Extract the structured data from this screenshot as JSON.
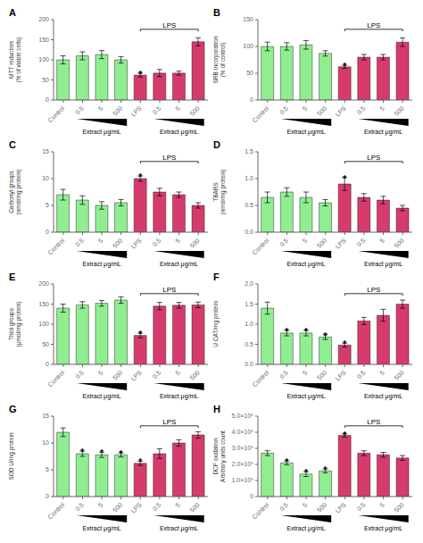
{
  "chart_data": [
    {
      "type": "bar",
      "title": "A",
      "ylabel": "MTT reduction\n(% of viable cells)",
      "categories": [
        "Control",
        "0.5",
        "5",
        "500",
        "LPS",
        "0.5",
        "5",
        "500"
      ],
      "values": [
        100,
        110,
        113,
        100,
        62,
        67,
        67,
        145
      ],
      "errors": [
        10,
        10,
        10,
        8,
        5,
        9,
        5,
        10
      ],
      "colors": [
        "#90ee90",
        "#90ee90",
        "#90ee90",
        "#90ee90",
        "#d63c6b",
        "#d63c6b",
        "#d63c6b",
        "#d63c6b"
      ],
      "ylim": [
        0,
        200
      ],
      "yticks": [
        0,
        50,
        100,
        150,
        200
      ],
      "annotations": [
        {
          "text": "*",
          "index": 4
        },
        {
          "text": "LPS",
          "from": 4,
          "to": 7,
          "shape": "bracket"
        },
        {
          "text": "Extract μg/mL",
          "from": 1,
          "to": 3,
          "shape": "triangle"
        },
        {
          "text": "Extract μg/mL",
          "from": 5,
          "to": 7,
          "shape": "triangle"
        }
      ]
    },
    {
      "type": "bar",
      "title": "B",
      "ylabel": "SRB Incorporation\n(% of control)",
      "categories": [
        "Control",
        "0.5",
        "5",
        "500",
        "LPS",
        "0.5",
        "5",
        "500"
      ],
      "values": [
        100,
        100,
        103,
        87,
        62,
        80,
        80,
        108
      ],
      "errors": [
        8,
        7,
        8,
        5,
        3,
        5,
        5,
        8
      ],
      "colors": [
        "#90ee90",
        "#90ee90",
        "#90ee90",
        "#90ee90",
        "#d63c6b",
        "#d63c6b",
        "#d63c6b",
        "#d63c6b"
      ],
      "ylim": [
        0,
        150
      ],
      "yticks": [
        0,
        50,
        100,
        150
      ],
      "annotations": [
        {
          "text": "*",
          "index": 4
        },
        {
          "text": "LPS",
          "from": 4,
          "to": 7,
          "shape": "bracket"
        },
        {
          "text": "Extract μg/mL",
          "from": 1,
          "to": 3,
          "shape": "triangle"
        },
        {
          "text": "Extract μg/mL",
          "from": 5,
          "to": 7,
          "shape": "triangle"
        }
      ]
    },
    {
      "type": "bar",
      "title": "C",
      "ylabel": "Carbonyl groups\n(nmol/mg protein)",
      "categories": [
        "Control",
        "0.5",
        "5",
        "500",
        "LPS",
        "0.5",
        "5",
        "500"
      ],
      "values": [
        7,
        6,
        5,
        5.5,
        10,
        7.5,
        7,
        5
      ],
      "errors": [
        1.0,
        0.8,
        0.7,
        0.6,
        0.5,
        0.7,
        0.5,
        0.5
      ],
      "colors": [
        "#90ee90",
        "#90ee90",
        "#90ee90",
        "#90ee90",
        "#d63c6b",
        "#d63c6b",
        "#d63c6b",
        "#d63c6b"
      ],
      "ylim": [
        0,
        15
      ],
      "yticks": [
        0,
        5,
        10,
        15
      ],
      "annotations": [
        {
          "text": "*",
          "index": 4
        },
        {
          "text": "LPS",
          "from": 4,
          "to": 7,
          "shape": "bracket"
        },
        {
          "text": "Extract μg/mL",
          "from": 1,
          "to": 3,
          "shape": "triangle"
        },
        {
          "text": "Extract μg/mL",
          "from": 5,
          "to": 7,
          "shape": "triangle"
        }
      ]
    },
    {
      "type": "bar",
      "title": "D",
      "ylabel": "TBARS\n(nmol/mg protein)",
      "categories": [
        "Control",
        "0.5",
        "5",
        "500",
        "LPS",
        "0.5",
        "5",
        "500"
      ],
      "values": [
        0.65,
        0.75,
        0.65,
        0.55,
        0.9,
        0.65,
        0.6,
        0.45
      ],
      "errors": [
        0.1,
        0.08,
        0.1,
        0.06,
        0.12,
        0.07,
        0.07,
        0.05
      ],
      "colors": [
        "#90ee90",
        "#90ee90",
        "#90ee90",
        "#90ee90",
        "#d63c6b",
        "#d63c6b",
        "#d63c6b",
        "#d63c6b"
      ],
      "ylim": [
        0.0,
        1.5
      ],
      "yticks": [
        {
          "value": 0.0,
          "label": "0.0"
        },
        0.5,
        {
          "value": 1.0,
          "label": "1.0"
        },
        1.5
      ],
      "annotations": [
        {
          "text": "*",
          "index": 4
        },
        {
          "text": "LPS",
          "from": 4,
          "to": 7,
          "shape": "bracket"
        },
        {
          "text": "Extract μg/mL",
          "from": 1,
          "to": 3,
          "shape": "triangle"
        },
        {
          "text": "Extract μg/mL",
          "from": 5,
          "to": 7,
          "shape": "triangle"
        }
      ]
    },
    {
      "type": "bar",
      "title": "E",
      "ylabel": "Thiol groups\n(μmol/mg protein)",
      "categories": [
        "Control",
        "0.5",
        "5",
        "500",
        "LPS",
        "0.5",
        "5",
        "500"
      ],
      "values": [
        140,
        148,
        152,
        160,
        72,
        145,
        147,
        148
      ],
      "errors": [
        10,
        8,
        7,
        8,
        6,
        9,
        7,
        7
      ],
      "colors": [
        "#90ee90",
        "#90ee90",
        "#90ee90",
        "#90ee90",
        "#d63c6b",
        "#d63c6b",
        "#d63c6b",
        "#d63c6b"
      ],
      "ylim": [
        0,
        200
      ],
      "yticks": [
        0,
        50,
        100,
        150,
        200
      ],
      "annotations": [
        {
          "text": "*",
          "index": 4
        },
        {
          "text": "LPS",
          "from": 4,
          "to": 7,
          "shape": "bracket"
        },
        {
          "text": "Extract μg/mL",
          "from": 1,
          "to": 3,
          "shape": "triangle"
        },
        {
          "text": "Extract μg/mL",
          "from": 5,
          "to": 7,
          "shape": "triangle"
        }
      ]
    },
    {
      "type": "bar",
      "title": "F",
      "ylabel": "U CAT/mg protein",
      "categories": [
        "Control",
        "0.5",
        "5",
        "500",
        "LPS",
        "0.5",
        "5",
        "500"
      ],
      "values": [
        1.4,
        0.78,
        0.78,
        0.68,
        0.48,
        1.08,
        1.22,
        1.5
      ],
      "errors": [
        0.15,
        0.07,
        0.07,
        0.06,
        0.05,
        0.09,
        0.15,
        0.1
      ],
      "colors": [
        "#90ee90",
        "#90ee90",
        "#90ee90",
        "#90ee90",
        "#d63c6b",
        "#d63c6b",
        "#d63c6b",
        "#d63c6b"
      ],
      "ylim": [
        0.0,
        2.0
      ],
      "yticks": [
        {
          "value": 0.0,
          "label": "0.0"
        },
        0.5,
        {
          "value": 1.0,
          "label": "1.0"
        },
        1.5,
        {
          "value": 2.0,
          "label": "2.0"
        }
      ],
      "annotations": [
        {
          "text": "*",
          "index": 1
        },
        {
          "text": "*",
          "index": 2
        },
        {
          "text": "*",
          "index": 3
        },
        {
          "text": "*",
          "index": 4
        },
        {
          "text": "LPS",
          "from": 4,
          "to": 7,
          "shape": "bracket"
        },
        {
          "text": "Extract μg/mL",
          "from": 1,
          "to": 3,
          "shape": "triangle"
        },
        {
          "text": "Extract μg/mL",
          "from": 5,
          "to": 7,
          "shape": "triangle"
        }
      ]
    },
    {
      "type": "bar",
      "title": "G",
      "ylabel": "SOD U/mg protein",
      "categories": [
        "Control",
        "0.5",
        "5",
        "500",
        "LPS",
        "0.5",
        "5",
        "500"
      ],
      "values": [
        12,
        8,
        7.8,
        7.8,
        6.2,
        8,
        10,
        11.5
      ],
      "errors": [
        0.8,
        0.5,
        0.5,
        0.4,
        0.4,
        0.9,
        0.6,
        0.6
      ],
      "colors": [
        "#90ee90",
        "#90ee90",
        "#90ee90",
        "#90ee90",
        "#d63c6b",
        "#d63c6b",
        "#d63c6b",
        "#d63c6b"
      ],
      "ylim": [
        0,
        15
      ],
      "yticks": [
        0,
        5,
        10,
        15
      ],
      "annotations": [
        {
          "text": "*",
          "index": 1
        },
        {
          "text": "*",
          "index": 2
        },
        {
          "text": "*",
          "index": 3
        },
        {
          "text": "*",
          "index": 4
        },
        {
          "text": "LPS",
          "from": 4,
          "to": 7,
          "shape": "bracket"
        },
        {
          "text": "Extract μg/mL",
          "from": 1,
          "to": 3,
          "shape": "triangle"
        },
        {
          "text": "Extract μg/mL",
          "from": 5,
          "to": 7,
          "shape": "triangle"
        }
      ]
    },
    {
      "type": "bar",
      "title": "H",
      "ylabel": "DCF oxidation\nArbitrary units count",
      "categories": [
        "Control",
        "0.5",
        "5",
        "500",
        "LPS",
        "0.5",
        "5",
        "500"
      ],
      "values": [
        270000000,
        210000000,
        140000000,
        160000000,
        380000000,
        270000000,
        260000000,
        240000000
      ],
      "errors": [
        15000000,
        12000000,
        15000000,
        12000000,
        10000000,
        15000000,
        15000000,
        15000000
      ],
      "colors": [
        "#90ee90",
        "#90ee90",
        "#90ee90",
        "#90ee90",
        "#d63c6b",
        "#d63c6b",
        "#d63c6b",
        "#d63c6b"
      ],
      "ylim": [
        0,
        500000000
      ],
      "yticks": [
        0,
        {
          "value": 100000000,
          "label": "1.0×10⁸"
        },
        {
          "value": 200000000,
          "label": "2.0×10⁸"
        },
        {
          "value": 300000000,
          "label": "3.0×10⁸"
        },
        {
          "value": 400000000,
          "label": "4.0×10⁸"
        },
        {
          "value": 500000000,
          "label": "5.0×10⁸"
        }
      ],
      "annotations": [
        {
          "text": "*",
          "index": 1
        },
        {
          "text": "*",
          "index": 2
        },
        {
          "text": "*",
          "index": 3
        },
        {
          "text": "*",
          "index": 4
        },
        {
          "text": "LPS",
          "from": 4,
          "to": 7,
          "shape": "bracket"
        },
        {
          "text": "Extract μg/mL",
          "from": 1,
          "to": 3,
          "shape": "triangle"
        },
        {
          "text": "Extract μg/mL",
          "from": 5,
          "to": 7,
          "shape": "triangle"
        }
      ]
    }
  ]
}
